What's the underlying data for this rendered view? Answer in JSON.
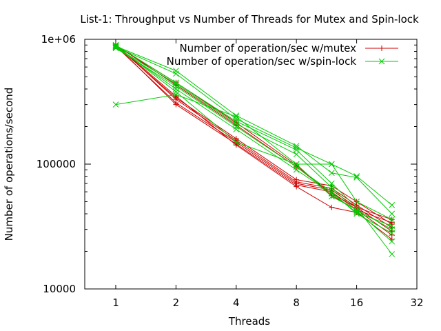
{
  "chart_data": {
    "type": "line",
    "title": "List-1: Throughput vs Number of Threads for Mutex and Spin-lock",
    "xlabel": "Threads",
    "ylabel": "Number of operations/second",
    "x_scale": "log2",
    "y_scale": "log10",
    "xlim": [
      0.7,
      32
    ],
    "ylim": [
      10000,
      1000000
    ],
    "x_ticks": [
      1,
      2,
      4,
      8,
      16,
      32
    ],
    "x_tick_labels": [
      "1",
      "2",
      "4",
      "8",
      "16",
      "32"
    ],
    "y_ticks": [
      10000,
      100000,
      1000000
    ],
    "y_tick_labels": [
      "10000",
      "100000",
      "1e+06"
    ],
    "legend_position": "top-right",
    "grid": false,
    "series": [
      {
        "name": "Number of operation/sec w/mutex",
        "color": "#cc0000",
        "marker": "plus",
        "runs": [
          {
            "x": [
              1,
              2,
              4,
              8,
              12,
              16,
              24
            ],
            "y": [
              900000,
              300000,
              145000,
              68000,
              60000,
              43000,
              27000
            ]
          },
          {
            "x": [
              1,
              2,
              4,
              8,
              12,
              16,
              24
            ],
            "y": [
              880000,
              310000,
              150000,
              70000,
              62000,
              45000,
              29000
            ]
          },
          {
            "x": [
              1,
              2,
              4,
              8,
              12,
              16,
              24
            ],
            "y": [
              910000,
              330000,
              155000,
              72000,
              64000,
              47000,
              31000
            ]
          },
          {
            "x": [
              1,
              2,
              4,
              8,
              12,
              16,
              24
            ],
            "y": [
              895000,
              340000,
              160000,
              75000,
              67000,
              50000,
              33000
            ]
          },
          {
            "x": [
              1,
              2,
              4,
              8,
              12,
              16,
              24
            ],
            "y": [
              905000,
              350000,
              142000,
              66000,
              45000,
              41000,
              25000
            ]
          },
          {
            "x": [
              1,
              2,
              4,
              8,
              12,
              16,
              24
            ],
            "y": [
              890000,
              450000,
              215000,
              98000,
              56000,
              43000,
              34000
            ]
          },
          {
            "x": [
              1,
              2,
              4,
              8,
              12,
              16,
              24
            ],
            "y": [
              900000,
              430000,
              205000,
              95000,
              58000,
              45000,
              36000
            ]
          }
        ]
      },
      {
        "name": "Number of operation/sec w/spin-lock",
        "color": "#00cc00",
        "marker": "cross",
        "runs": [
          {
            "x": [
              1,
              2,
              4,
              8,
              12,
              16,
              24
            ],
            "y": [
              300000,
              360000,
              240000,
              100000,
              100000,
              80000,
              47000
            ]
          },
          {
            "x": [
              1,
              2,
              4,
              8,
              12,
              16,
              24
            ],
            "y": [
              880000,
              560000,
              245000,
              140000,
              85000,
              78000,
              40000
            ]
          },
          {
            "x": [
              1,
              2,
              4,
              8,
              12,
              16,
              24
            ],
            "y": [
              870000,
              530000,
              230000,
              135000,
              100000,
              50000,
              36000
            ]
          },
          {
            "x": [
              1,
              2,
              4,
              8,
              12,
              16,
              24
            ],
            "y": [
              900000,
              450000,
              220000,
              130000,
              70000,
              45000,
              19000
            ]
          },
          {
            "x": [
              1,
              2,
              4,
              8,
              12,
              16,
              24
            ],
            "y": [
              860000,
              440000,
              210000,
              120000,
              65000,
              42000,
              24000
            ]
          },
          {
            "x": [
              1,
              2,
              4,
              8,
              12,
              16,
              24
            ],
            "y": [
              850000,
              420000,
              200000,
              95000,
              60000,
              40000,
              28000
            ]
          },
          {
            "x": [
              1,
              2,
              4,
              8,
              12,
              16,
              24
            ],
            "y": [
              890000,
              380000,
              150000,
              100000,
              55000,
              43000,
              30000
            ]
          },
          {
            "x": [
              1,
              2,
              4,
              8,
              12,
              16,
              24
            ],
            "y": [
              875000,
              400000,
              190000,
              90000,
              58000,
              41000,
              32000
            ]
          }
        ]
      }
    ]
  }
}
